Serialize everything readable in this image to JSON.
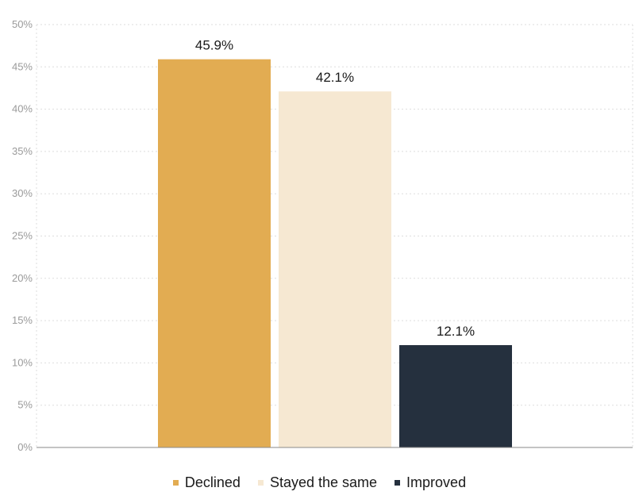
{
  "chart_data": {
    "type": "bar",
    "title": "",
    "xlabel": "",
    "ylabel": "",
    "categories": [
      "Declined",
      "Stayed the same",
      "Improved"
    ],
    "values": [
      45.9,
      42.1,
      12.1
    ],
    "value_labels": [
      "45.9%",
      "42.1%",
      "12.1%"
    ],
    "colors": [
      "#e2ac52",
      "#f6e8d2",
      "#25303e"
    ],
    "ylim": [
      0,
      50
    ],
    "yticks": [
      0,
      5,
      10,
      15,
      20,
      25,
      30,
      35,
      40,
      45,
      50
    ],
    "ytick_labels": [
      "0%",
      "5%",
      "10%",
      "15%",
      "20%",
      "25%",
      "30%",
      "35%",
      "40%",
      "45%",
      "50%"
    ],
    "grid": true,
    "legend_position": "bottom"
  },
  "legend": {
    "items": [
      {
        "label": "Declined",
        "color": "#e2ac52"
      },
      {
        "label": "Stayed the same",
        "color": "#f6e8d2"
      },
      {
        "label": "Improved",
        "color": "#25303e"
      }
    ]
  }
}
